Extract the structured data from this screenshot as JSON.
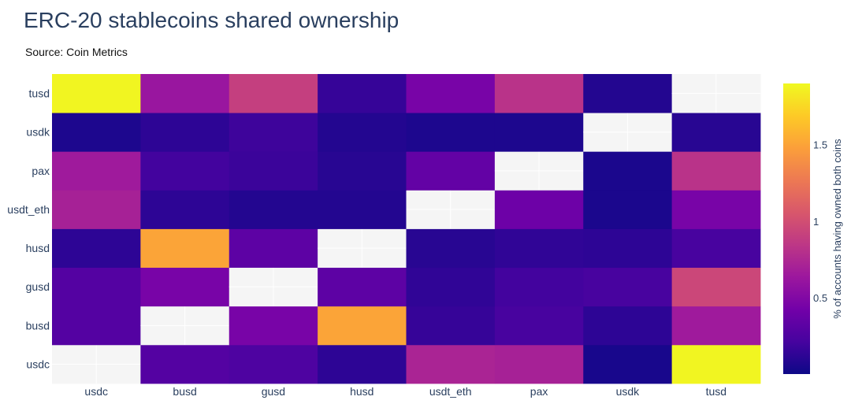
{
  "title": "ERC-20 stablecoins shared ownership",
  "subtitle": "Source: Coin Metrics",
  "chart_data": {
    "type": "heatmap",
    "x_categories": [
      "usdc",
      "busd",
      "gusd",
      "husd",
      "usdt_eth",
      "pax",
      "usdk",
      "tusd"
    ],
    "y_categories": [
      "usdc",
      "busd",
      "gusd",
      "husd",
      "usdt_eth",
      "pax",
      "usdk",
      "tusd"
    ],
    "z": [
      [
        null,
        0.28,
        0.25,
        0.12,
        0.72,
        0.7,
        0.04,
        1.88
      ],
      [
        0.28,
        null,
        0.45,
        1.5,
        0.15,
        0.22,
        0.12,
        0.65
      ],
      [
        0.28,
        0.45,
        null,
        0.32,
        0.13,
        0.2,
        0.22,
        0.95
      ],
      [
        0.12,
        1.5,
        0.32,
        null,
        0.1,
        0.13,
        0.12,
        0.22
      ],
      [
        0.7,
        0.12,
        0.08,
        0.08,
        null,
        0.4,
        0.05,
        0.45
      ],
      [
        0.65,
        0.2,
        0.17,
        0.1,
        0.35,
        null,
        0.05,
        0.82
      ],
      [
        0.06,
        0.12,
        0.18,
        0.08,
        0.06,
        0.06,
        null,
        0.1
      ],
      [
        1.88,
        0.62,
        0.9,
        0.15,
        0.45,
        0.82,
        0.08,
        null
      ]
    ],
    "zmin": 0,
    "zmax": 1.9,
    "colorscale": [
      "#0d0887",
      "#46039f",
      "#7201a8",
      "#9c179e",
      "#bd3786",
      "#d8576b",
      "#ed7953",
      "#fb9f3a",
      "#fdca26",
      "#f0f921"
    ],
    "missing_color": "#f5f5f5",
    "colorbar": {
      "title": "% of accounts having owned both coins",
      "tickvals": [
        0.5,
        1,
        1.5
      ],
      "ticktext": [
        "0.5",
        "1",
        "1.5"
      ]
    }
  }
}
